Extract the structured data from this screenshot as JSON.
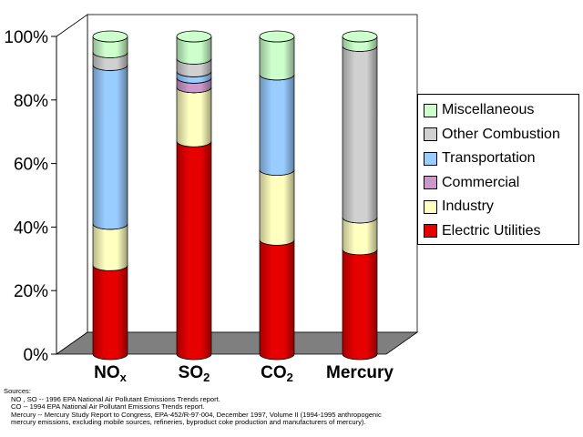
{
  "chart_data": {
    "type": "bar",
    "stacked": true,
    "percent": true,
    "categories": [
      "NO",
      "SO",
      "CO",
      "Mercury"
    ],
    "category_subscripts": [
      "x",
      "2",
      "2",
      ""
    ],
    "series": [
      {
        "name": "Electric Utilities",
        "color": "#e60000",
        "values": [
          28,
          67,
          36,
          33
        ]
      },
      {
        "name": "Industry",
        "color": "#ffffc0",
        "values": [
          13,
          17,
          22,
          10
        ]
      },
      {
        "name": "Commercial",
        "color": "#cc99cc",
        "values": [
          0,
          3,
          0,
          0
        ]
      },
      {
        "name": "Transportation",
        "color": "#99ccff",
        "values": [
          50,
          2,
          30,
          0
        ]
      },
      {
        "name": "Other Combustion",
        "color": "#d0d0d0",
        "values": [
          4,
          4,
          0,
          54
        ]
      },
      {
        "name": "Miscellaneous",
        "color": "#ccffcc",
        "values": [
          5,
          7,
          12,
          3
        ]
      }
    ],
    "ylim": [
      0,
      100
    ],
    "yticks": [
      "0%",
      "20%",
      "40%",
      "60%",
      "80%",
      "100%"
    ],
    "grid": false,
    "legend_position": "right"
  },
  "sources": {
    "heading": "Sources:",
    "line1": "NO , SO  -- 1996 EPA National Air Pollutant Emissions Trends report.",
    "line2": "CO  -- 1994 EPA National Air Pollutant Emissions Trends report.",
    "line3": "Mercury -- Mercury Study Report to Congress, EPA-452/R-97-004, December 1997, Volume II (1994-1995 anthropogenic",
    "line4": "mercury emissions, excluding mobile sources, refineries, byproduct coke production and manufacturers of mercury)."
  }
}
